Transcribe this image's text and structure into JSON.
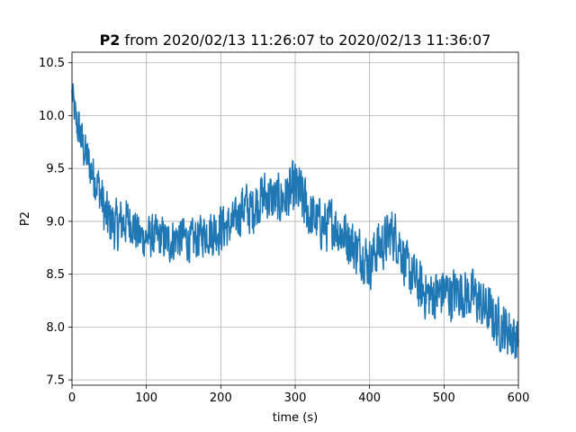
{
  "chart_data": {
    "type": "line",
    "title_bold": "P2",
    "title_rest": " from 2020/02/13 11:26:07 to 2020/02/13 11:36:07",
    "xlabel": "time (s)",
    "ylabel": "P2",
    "xlim": [
      0,
      600
    ],
    "ylim": [
      7.45,
      10.6
    ],
    "xticks": [
      0,
      100,
      200,
      300,
      400,
      500,
      600
    ],
    "yticks": [
      7.5,
      8.0,
      8.5,
      9.0,
      9.5,
      10.0,
      10.5
    ],
    "ytick_labels": [
      "7.5",
      "8.0",
      "8.5",
      "9.0",
      "9.5",
      "10.0",
      "10.5"
    ],
    "grid": true,
    "series": [
      {
        "color": "#1f77b4",
        "x": [
          0,
          5,
          10,
          15,
          20,
          25,
          30,
          35,
          40,
          45,
          50,
          60,
          70,
          80,
          90,
          100,
          110,
          120,
          130,
          140,
          150,
          160,
          170,
          180,
          190,
          200,
          210,
          220,
          230,
          240,
          250,
          260,
          270,
          280,
          290,
          300,
          310,
          320,
          330,
          340,
          350,
          360,
          370,
          380,
          390,
          400,
          410,
          420,
          430,
          440,
          450,
          460,
          470,
          480,
          490,
          500,
          510,
          520,
          530,
          540,
          550,
          560,
          570,
          580,
          590,
          600
        ],
        "mid": [
          10.2,
          9.95,
          9.85,
          9.7,
          9.6,
          9.5,
          9.4,
          9.35,
          9.2,
          9.05,
          9.0,
          8.95,
          9.0,
          9.0,
          8.85,
          8.85,
          8.85,
          8.85,
          8.8,
          8.85,
          8.85,
          8.8,
          8.85,
          8.9,
          8.9,
          8.95,
          8.95,
          9.0,
          9.15,
          9.1,
          9.2,
          9.25,
          9.2,
          9.2,
          9.25,
          9.3,
          9.2,
          9.05,
          9.0,
          8.95,
          9.0,
          8.9,
          8.85,
          8.75,
          8.7,
          8.6,
          8.75,
          8.8,
          8.9,
          8.8,
          8.55,
          8.45,
          8.35,
          8.3,
          8.3,
          8.35,
          8.3,
          8.35,
          8.3,
          8.3,
          8.2,
          8.15,
          8.05,
          8.0,
          7.95,
          7.85
        ],
        "amp": [
          0.2,
          0.25,
          0.25,
          0.25,
          0.25,
          0.25,
          0.25,
          0.25,
          0.3,
          0.3,
          0.3,
          0.3,
          0.3,
          0.25,
          0.25,
          0.25,
          0.25,
          0.25,
          0.25,
          0.25,
          0.25,
          0.25,
          0.25,
          0.25,
          0.3,
          0.3,
          0.25,
          0.25,
          0.3,
          0.3,
          0.3,
          0.3,
          0.3,
          0.3,
          0.3,
          0.35,
          0.35,
          0.3,
          0.3,
          0.3,
          0.3,
          0.3,
          0.3,
          0.3,
          0.3,
          0.3,
          0.3,
          0.3,
          0.3,
          0.3,
          0.3,
          0.3,
          0.3,
          0.3,
          0.3,
          0.3,
          0.3,
          0.3,
          0.3,
          0.3,
          0.3,
          0.3,
          0.3,
          0.3,
          0.3,
          0.25
        ]
      }
    ]
  }
}
